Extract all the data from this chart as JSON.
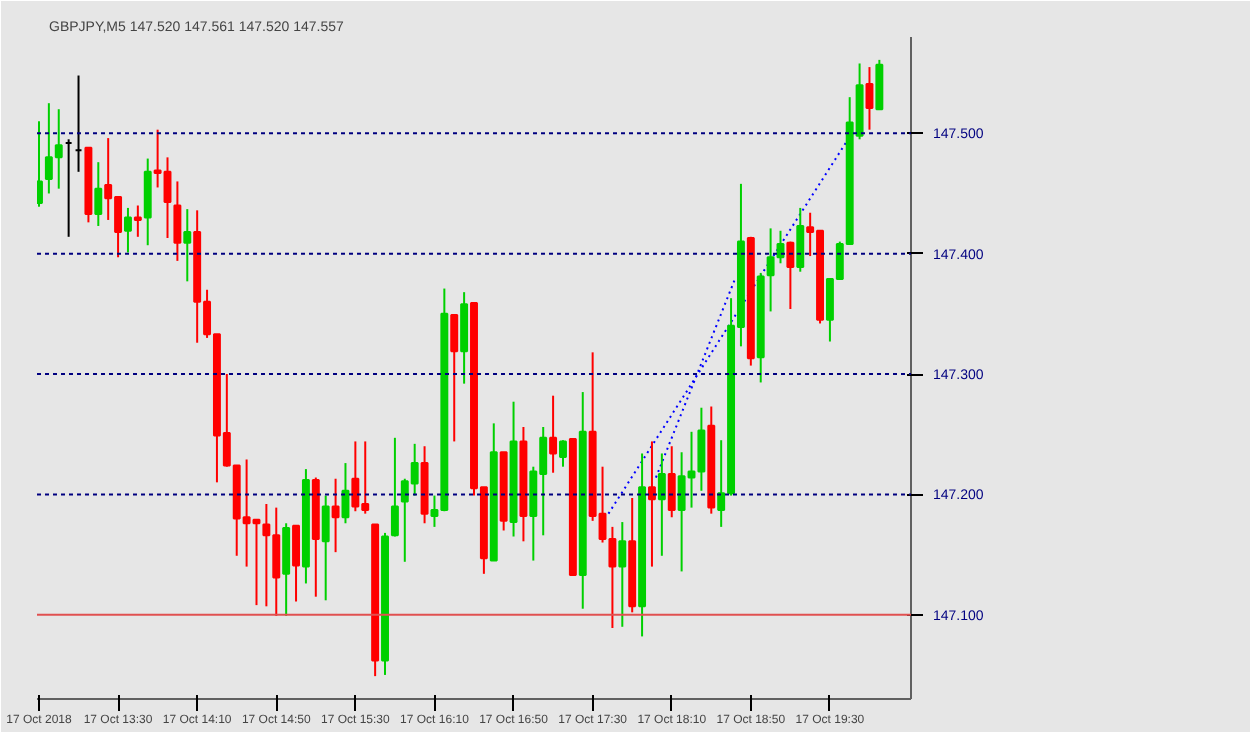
{
  "chart_data": {
    "type": "candlestick",
    "title": "GBPJPY,M5 147.520 147.561 147.520 147.557",
    "x": [
      "2018-10-17T12:50",
      "2018-10-17T12:55",
      "2018-10-17T13:00",
      "2018-10-17T13:05",
      "2018-10-17T13:10",
      "2018-10-17T13:15",
      "2018-10-17T13:20",
      "2018-10-17T13:25",
      "2018-10-17T13:30",
      "2018-10-17T13:35",
      "2018-10-17T13:40",
      "2018-10-17T13:45",
      "2018-10-17T13:50",
      "2018-10-17T13:55",
      "2018-10-17T14:00",
      "2018-10-17T14:05",
      "2018-10-17T14:10",
      "2018-10-17T14:15",
      "2018-10-17T14:20",
      "2018-10-17T14:25",
      "2018-10-17T14:30",
      "2018-10-17T14:35",
      "2018-10-17T14:40",
      "2018-10-17T14:45",
      "2018-10-17T14:50",
      "2018-10-17T14:55",
      "2018-10-17T15:00",
      "2018-10-17T15:05",
      "2018-10-17T15:10",
      "2018-10-17T15:15",
      "2018-10-17T15:20",
      "2018-10-17T15:25",
      "2018-10-17T15:30",
      "2018-10-17T15:35",
      "2018-10-17T15:40",
      "2018-10-17T15:45",
      "2018-10-17T15:50",
      "2018-10-17T15:55",
      "2018-10-17T16:00",
      "2018-10-17T16:05",
      "2018-10-17T16:10",
      "2018-10-17T16:15",
      "2018-10-17T16:20",
      "2018-10-17T16:25",
      "2018-10-17T16:30",
      "2018-10-17T16:35",
      "2018-10-17T16:40",
      "2018-10-17T16:45",
      "2018-10-17T16:50",
      "2018-10-17T16:55",
      "2018-10-17T17:00",
      "2018-10-17T17:05",
      "2018-10-17T17:10",
      "2018-10-17T17:15",
      "2018-10-17T17:20",
      "2018-10-17T17:25",
      "2018-10-17T17:30",
      "2018-10-17T17:35",
      "2018-10-17T17:40",
      "2018-10-17T17:45",
      "2018-10-17T17:50",
      "2018-10-17T17:55",
      "2018-10-17T18:00",
      "2018-10-17T18:05",
      "2018-10-17T18:10",
      "2018-10-17T18:15",
      "2018-10-17T18:20",
      "2018-10-17T18:25",
      "2018-10-17T18:30",
      "2018-10-17T18:35",
      "2018-10-17T18:40",
      "2018-10-17T18:45",
      "2018-10-17T18:50",
      "2018-10-17T18:55",
      "2018-10-17T19:00",
      "2018-10-17T19:05",
      "2018-10-17T19:10",
      "2018-10-17T19:15",
      "2018-10-17T19:20",
      "2018-10-17T19:25",
      "2018-10-17T19:30",
      "2018-10-17T19:35",
      "2018-10-17T19:40",
      "2018-10-17T19:45",
      "2018-10-17T19:50",
      "2018-10-17T19:55"
    ],
    "ohlc": [
      [
        147.442,
        147.51,
        147.439,
        147.46
      ],
      [
        147.462,
        147.525,
        147.45,
        147.48
      ],
      [
        147.48,
        147.52,
        147.454,
        147.49
      ],
      [
        147.492,
        147.495,
        147.414,
        147.492
      ],
      [
        147.486,
        147.548,
        147.468,
        147.486
      ],
      [
        147.488,
        147.488,
        147.426,
        147.433
      ],
      [
        147.433,
        147.476,
        147.423,
        147.454
      ],
      [
        147.457,
        147.496,
        147.428,
        147.446
      ],
      [
        147.447,
        147.447,
        147.397,
        147.418
      ],
      [
        147.419,
        147.438,
        147.401,
        147.43
      ],
      [
        147.43,
        147.44,
        147.414,
        147.428
      ],
      [
        147.43,
        147.479,
        147.407,
        147.468
      ],
      [
        147.469,
        147.503,
        147.455,
        147.467
      ],
      [
        147.468,
        147.48,
        147.413,
        147.443
      ],
      [
        147.44,
        147.46,
        147.394,
        147.409
      ],
      [
        147.409,
        147.437,
        147.377,
        147.418
      ],
      [
        147.418,
        147.436,
        147.326,
        147.36
      ],
      [
        147.36,
        147.37,
        147.33,
        147.333
      ],
      [
        147.333,
        147.333,
        147.21,
        147.249
      ],
      [
        147.251,
        147.3,
        147.223,
        147.224
      ],
      [
        147.224,
        147.224,
        147.149,
        147.18
      ],
      [
        147.181,
        147.229,
        147.14,
        147.176
      ],
      [
        147.179,
        147.179,
        147.108,
        147.176
      ],
      [
        147.175,
        147.192,
        147.107,
        147.166
      ],
      [
        147.166,
        147.189,
        147.099,
        147.131
      ],
      [
        147.134,
        147.176,
        147.099,
        147.172
      ],
      [
        147.174,
        147.174,
        147.111,
        147.141
      ],
      [
        147.14,
        147.221,
        147.126,
        147.212
      ],
      [
        147.212,
        147.214,
        147.115,
        147.163
      ],
      [
        147.161,
        147.199,
        147.112,
        147.19
      ],
      [
        147.19,
        147.213,
        147.152,
        147.181
      ],
      [
        147.181,
        147.226,
        147.176,
        147.203
      ],
      [
        147.213,
        147.244,
        147.186,
        147.19
      ],
      [
        147.192,
        147.244,
        147.184,
        147.187
      ],
      [
        147.175,
        147.175,
        147.049,
        147.062
      ],
      [
        147.062,
        147.168,
        147.05,
        147.165
      ],
      [
        147.166,
        147.247,
        147.165,
        147.19
      ],
      [
        147.194,
        147.213,
        147.144,
        147.211
      ],
      [
        147.209,
        147.242,
        147.199,
        147.226
      ],
      [
        147.226,
        147.24,
        147.176,
        147.184
      ],
      [
        147.182,
        147.199,
        147.173,
        147.187
      ],
      [
        147.187,
        147.371,
        147.186,
        147.35
      ],
      [
        147.349,
        147.349,
        147.244,
        147.319
      ],
      [
        147.319,
        147.368,
        147.292,
        147.358
      ],
      [
        147.359,
        147.359,
        147.199,
        147.205
      ],
      [
        147.206,
        147.206,
        147.134,
        147.147
      ],
      [
        147.145,
        147.259,
        147.145,
        147.235
      ],
      [
        147.235,
        147.235,
        147.17,
        147.178
      ],
      [
        147.177,
        147.277,
        147.165,
        147.244
      ],
      [
        147.244,
        147.256,
        147.161,
        147.182
      ],
      [
        147.182,
        147.223,
        147.145,
        147.219
      ],
      [
        147.217,
        147.256,
        147.166,
        147.247
      ],
      [
        147.247,
        147.282,
        147.218,
        147.234
      ],
      [
        147.231,
        147.245,
        147.223,
        147.244
      ],
      [
        147.246,
        147.246,
        147.133,
        147.133
      ],
      [
        147.133,
        147.285,
        147.105,
        147.252
      ],
      [
        147.252,
        147.318,
        147.178,
        147.182
      ],
      [
        147.184,
        147.223,
        147.16,
        147.163
      ],
      [
        147.163,
        147.173,
        147.089,
        147.14
      ],
      [
        147.14,
        147.177,
        147.09,
        147.161
      ],
      [
        147.161,
        147.197,
        147.102,
        147.107
      ],
      [
        147.107,
        147.234,
        147.082,
        147.206
      ],
      [
        147.206,
        147.244,
        147.14,
        147.196
      ],
      [
        147.196,
        147.234,
        147.149,
        147.217
      ],
      [
        147.217,
        147.24,
        147.181,
        147.187
      ],
      [
        147.187,
        147.235,
        147.136,
        147.215
      ],
      [
        147.214,
        147.252,
        147.189,
        147.219
      ],
      [
        147.219,
        147.272,
        147.203,
        147.253
      ],
      [
        147.257,
        147.273,
        147.184,
        147.189
      ],
      [
        147.187,
        147.245,
        147.173,
        147.201
      ],
      [
        147.201,
        147.363,
        147.199,
        147.34
      ],
      [
        147.339,
        147.458,
        147.323,
        147.41
      ],
      [
        147.413,
        147.414,
        147.307,
        147.313
      ],
      [
        147.314,
        147.384,
        147.293,
        147.381
      ],
      [
        147.382,
        147.421,
        147.352,
        147.397
      ],
      [
        147.397,
        147.419,
        147.392,
        147.408
      ],
      [
        147.409,
        147.41,
        147.354,
        147.389
      ],
      [
        147.389,
        147.438,
        147.385,
        147.423
      ],
      [
        147.422,
        147.434,
        147.398,
        147.418
      ],
      [
        147.419,
        147.419,
        147.342,
        147.345
      ],
      [
        147.345,
        147.379,
        147.327,
        147.379
      ],
      [
        147.379,
        147.41,
        147.379,
        147.408
      ],
      [
        147.408,
        147.53,
        147.408,
        147.509
      ],
      [
        147.498,
        147.558,
        147.495,
        147.54
      ],
      [
        147.541,
        147.555,
        147.503,
        147.521
      ],
      [
        147.52,
        147.561,
        147.52,
        147.557
      ]
    ],
    "colors": [
      "#00d000",
      "#00d000",
      "#00d000",
      "#000000",
      "#000000",
      "#ff0000",
      "#00d000",
      "#ff0000",
      "#ff0000",
      "#00d000",
      "#ff0000",
      "#00d000",
      "#ff0000",
      "#ff0000",
      "#ff0000",
      "#00d000",
      "#ff0000",
      "#ff0000",
      "#ff0000",
      "#ff0000",
      "#ff0000",
      "#ff0000",
      "#ff0000",
      "#ff0000",
      "#ff0000",
      "#00d000",
      "#ff0000",
      "#00d000",
      "#ff0000",
      "#00d000",
      "#ff0000",
      "#00d000",
      "#ff0000",
      "#ff0000",
      "#ff0000",
      "#00d000",
      "#00d000",
      "#00d000",
      "#00d000",
      "#ff0000",
      "#00d000",
      "#00d000",
      "#ff0000",
      "#00d000",
      "#ff0000",
      "#ff0000",
      "#00d000",
      "#ff0000",
      "#00d000",
      "#ff0000",
      "#00d000",
      "#00d000",
      "#ff0000",
      "#00d000",
      "#ff0000",
      "#00d000",
      "#ff0000",
      "#ff0000",
      "#ff0000",
      "#00d000",
      "#ff0000",
      "#00d000",
      "#ff0000",
      "#00d000",
      "#ff0000",
      "#00d000",
      "#00d000",
      "#00d000",
      "#ff0000",
      "#00d000",
      "#00d000",
      "#00d000",
      "#ff0000",
      "#00d000",
      "#00d000",
      "#00d000",
      "#ff0000",
      "#00d000",
      "#ff0000",
      "#ff0000",
      "#00d000",
      "#00d000",
      "#00d000",
      "#00d000",
      "#ff0000",
      "#00d000"
    ],
    "series": [
      {
        "type": "line",
        "color": "#0000ff",
        "line_style": "dotted",
        "x": [
          "2018-10-17T17:38",
          "2018-10-17T19:38"
        ],
        "values": [
          147.184,
          147.492
        ]
      },
      {
        "type": "line",
        "color": "#0000ff",
        "line_style": "dotted",
        "x": [
          "2018-10-17T18:02",
          "2018-10-17T18:42"
        ],
        "values": [
          147.214,
          147.379
        ]
      }
    ],
    "xlim": [
      "2018-10-17T12:49",
      "2018-10-17T20:11"
    ],
    "xticks": [
      {
        "value": "2018-10-17T12:50",
        "label": "17 Oct 2018"
      },
      {
        "value": "2018-10-17T13:30",
        "label": "17 Oct 13:30"
      },
      {
        "value": "2018-10-17T14:10",
        "label": "17 Oct 14:10"
      },
      {
        "value": "2018-10-17T14:50",
        "label": "17 Oct 14:50"
      },
      {
        "value": "2018-10-17T15:30",
        "label": "17 Oct 15:30"
      },
      {
        "value": "2018-10-17T16:10",
        "label": "17 Oct 16:10"
      },
      {
        "value": "2018-10-17T16:50",
        "label": "17 Oct 16:50"
      },
      {
        "value": "2018-10-17T17:30",
        "label": "17 Oct 17:30"
      },
      {
        "value": "2018-10-17T18:10",
        "label": "17 Oct 18:10"
      },
      {
        "value": "2018-10-17T18:50",
        "label": "17 Oct 18:50"
      },
      {
        "value": "2018-10-17T19:30",
        "label": "17 Oct 19:30"
      }
    ],
    "ylim": [
      147.03,
      147.58
    ],
    "yticks": [
      {
        "value": 147.1,
        "label": "147.100"
      },
      {
        "value": 147.2,
        "label": "147.200"
      },
      {
        "value": 147.3,
        "label": "147.300"
      },
      {
        "value": 147.4,
        "label": "147.400"
      },
      {
        "value": 147.5,
        "label": "147.500"
      }
    ],
    "ref_lines": [
      {
        "axis": "y",
        "value": 147.5,
        "color": "#000080",
        "line_style": "dashed"
      },
      {
        "axis": "y",
        "value": 147.4,
        "color": "#000080",
        "line_style": "dashed"
      },
      {
        "axis": "y",
        "value": 147.3,
        "color": "#000080",
        "line_style": "dashed"
      },
      {
        "axis": "y",
        "value": 147.2,
        "color": "#000080",
        "line_style": "dashed"
      },
      {
        "axis": "y",
        "value": 147.1,
        "color": "#e05050",
        "line_style": "solid"
      }
    ]
  }
}
